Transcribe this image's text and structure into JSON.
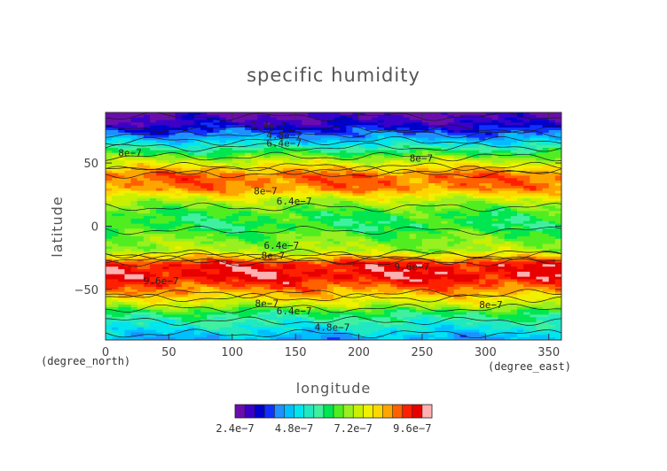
{
  "chart_data": {
    "type": "heatmap",
    "title": "specific humidity",
    "xlabel": "longitude",
    "ylabel": "latitude",
    "x_unit_label": "(degree_east)",
    "y_unit_label": "(degree_north)",
    "xlim": [
      0,
      360
    ],
    "ylim": [
      -90,
      90
    ],
    "x_ticks": [
      "0",
      "50",
      "100",
      "150",
      "200",
      "250",
      "300",
      "350"
    ],
    "y_ticks": [
      "50",
      "0",
      "−50"
    ],
    "colorbar": {
      "levels": [
        2.4e-07,
        2.8e-07,
        3.2e-07,
        3.6e-07,
        4e-07,
        4.4e-07,
        4.8e-07,
        5.2e-07,
        5.6e-07,
        6e-07,
        6.4e-07,
        6.8e-07,
        7.2e-07,
        7.6e-07,
        8e-07,
        8.4e-07,
        8.8e-07,
        9.2e-07,
        9.6e-07,
        1e-06
      ],
      "colors": [
        "#6a0dad",
        "#3a00c8",
        "#0000cd",
        "#1030ff",
        "#1e90ff",
        "#00bfff",
        "#00e5ee",
        "#20e8c0",
        "#40f0a0",
        "#00e650",
        "#50ee20",
        "#98f020",
        "#c8f000",
        "#f0f000",
        "#ffd700",
        "#ffa500",
        "#ff6000",
        "#ff2000",
        "#e80000",
        "#ffb0b0"
      ],
      "tick_labels": [
        "2.4e−7",
        "4.8e−7",
        "7.2e−7",
        "9.6e−7"
      ]
    },
    "latitude_profile": {
      "lat": [
        -90,
        -80,
        -70,
        -60,
        -50,
        -40,
        -30,
        -20,
        -10,
        0,
        10,
        20,
        30,
        40,
        50,
        60,
        70,
        80,
        90
      ],
      "value": [
        4.4e-07,
        5.2e-07,
        6e-07,
        7.6e-07,
        8.8e-07,
        9.8e-07,
        9.6e-07,
        7.2e-07,
        6.8e-07,
        6.2e-07,
        6.4e-07,
        7.2e-07,
        8.8e-07,
        9e-07,
        7.6e-07,
        6e-07,
        4.4e-07,
        3.2e-07,
        2.6e-07
      ]
    },
    "contour_labels": [
      {
        "text": "2.4e−7",
        "lon": 115,
        "lat": 80
      },
      {
        "text": "4.8e−7",
        "lon": 127,
        "lat": 72
      },
      {
        "text": "6.4e−7",
        "lon": 127,
        "lat": 66
      },
      {
        "text": "8e−7",
        "lon": 10,
        "lat": 58
      },
      {
        "text": "8e−7",
        "lon": 240,
        "lat": 54
      },
      {
        "text": "8e−7",
        "lon": 117,
        "lat": 28
      },
      {
        "text": "6.4e−7",
        "lon": 135,
        "lat": 20
      },
      {
        "text": "6.4e−7",
        "lon": 125,
        "lat": -15
      },
      {
        "text": "8e−7",
        "lon": 123,
        "lat": -23
      },
      {
        "text": "9.6e−7",
        "lon": 228,
        "lat": -32
      },
      {
        "text": "9.6e−7",
        "lon": 30,
        "lat": -43
      },
      {
        "text": "8e−7",
        "lon": 295,
        "lat": -62
      },
      {
        "text": "8e−7",
        "lon": 118,
        "lat": -61
      },
      {
        "text": "6.4e−7",
        "lon": 135,
        "lat": -67
      },
      {
        "text": "4.8e−7",
        "lon": 165,
        "lat": -80
      }
    ]
  }
}
